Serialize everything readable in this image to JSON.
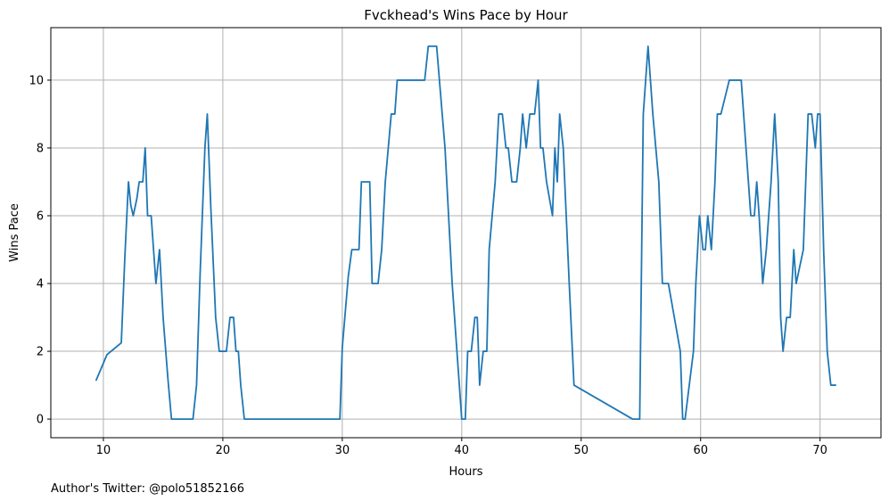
{
  "chart_data": {
    "type": "line",
    "title": "Fvckhead's Wins Pace by Hour",
    "xlabel": "Hours",
    "ylabel": "Wins Pace",
    "xlim": [
      5.6,
      75.1
    ],
    "ylim": [
      -0.55,
      11.55
    ],
    "xticks": [
      10,
      20,
      30,
      40,
      50,
      60,
      70
    ],
    "yticks": [
      0,
      2,
      4,
      6,
      8,
      10
    ],
    "grid": true,
    "legend": "none",
    "series": [
      {
        "color": "#1f77b4",
        "x": [
          9.4,
          10.3,
          11.5,
          11.8,
          12.1,
          12.3,
          12.5,
          12.8,
          13.0,
          13.3,
          13.5,
          13.7,
          14.0,
          14.4,
          14.7,
          15.0,
          15.4,
          15.7,
          17.5,
          17.8,
          18.1,
          18.5,
          18.7,
          19.0,
          19.4,
          19.7,
          20.3,
          20.6,
          20.9,
          21.1,
          21.3,
          21.5,
          21.8,
          29.8,
          30.0,
          30.5,
          30.8,
          31.4,
          31.6,
          32.3,
          32.5,
          33.0,
          33.3,
          33.6,
          34.1,
          34.4,
          34.6,
          36.9,
          37.2,
          37.9,
          38.6,
          39.2,
          39.6,
          40.0,
          40.3,
          40.5,
          40.8,
          41.1,
          41.3,
          41.5,
          41.8,
          42.1,
          42.3,
          42.8,
          43.1,
          43.4,
          43.7,
          43.9,
          44.2,
          44.6,
          44.9,
          45.1,
          45.4,
          45.7,
          46.1,
          46.4,
          46.6,
          46.8,
          47.1,
          47.6,
          47.8,
          48.0,
          48.2,
          48.5,
          49.0,
          49.4,
          54.3,
          54.9,
          55.2,
          55.6,
          56.0,
          56.5,
          56.8,
          57.3,
          58.3,
          58.5,
          58.7,
          59.4,
          59.6,
          59.9,
          60.2,
          60.4,
          60.6,
          60.9,
          61.2,
          61.4,
          61.7,
          62.4,
          63.4,
          64.2,
          64.5,
          64.7,
          64.9,
          65.2,
          65.5,
          65.9,
          66.2,
          66.5,
          66.7,
          66.9,
          67.2,
          67.5,
          67.8,
          68.0,
          68.6,
          69.0,
          69.3,
          69.6,
          69.8,
          70.0,
          70.3,
          70.6,
          70.9,
          71.3
        ],
        "y": [
          1.15,
          1.9,
          2.25,
          4.8,
          7.0,
          6.3,
          6.0,
          6.5,
          7.0,
          7.0,
          8.0,
          6.0,
          6.0,
          4.0,
          5.0,
          3.0,
          1.2,
          0.0,
          0.0,
          1.0,
          4.3,
          8.0,
          9.0,
          6.2,
          3.0,
          2.0,
          2.0,
          3.0,
          3.0,
          2.0,
          2.0,
          1.0,
          0.0,
          0.0,
          2.1,
          4.2,
          5.0,
          5.0,
          7.0,
          7.0,
          4.0,
          4.0,
          5.0,
          7.0,
          9.0,
          9.0,
          10.0,
          10.0,
          11.0,
          11.0,
          8.0,
          4.0,
          2.0,
          0.0,
          0.0,
          2.0,
          2.0,
          3.0,
          3.0,
          1.0,
          2.0,
          2.0,
          5.0,
          7.0,
          9.0,
          9.0,
          8.0,
          8.0,
          7.0,
          7.0,
          8.0,
          9.0,
          8.0,
          9.0,
          9.0,
          10.0,
          8.0,
          8.0,
          7.0,
          6.0,
          8.0,
          7.0,
          9.0,
          8.0,
          4.0,
          1.0,
          0.0,
          0.0,
          9.0,
          11.0,
          9.0,
          7.0,
          4.0,
          4.0,
          2.0,
          0.0,
          0.0,
          2.0,
          4.0,
          6.0,
          5.0,
          5.0,
          6.0,
          5.0,
          7.0,
          9.0,
          9.0,
          10.0,
          10.0,
          6.0,
          6.0,
          7.0,
          6.0,
          4.0,
          5.0,
          7.0,
          9.0,
          7.0,
          3.0,
          2.0,
          3.0,
          3.0,
          5.0,
          4.0,
          5.0,
          9.0,
          9.0,
          8.0,
          9.0,
          9.0,
          5.0,
          2.0,
          1.0,
          1.0
        ]
      }
    ],
    "annotation": "Author's Twitter: @polo51852166"
  }
}
